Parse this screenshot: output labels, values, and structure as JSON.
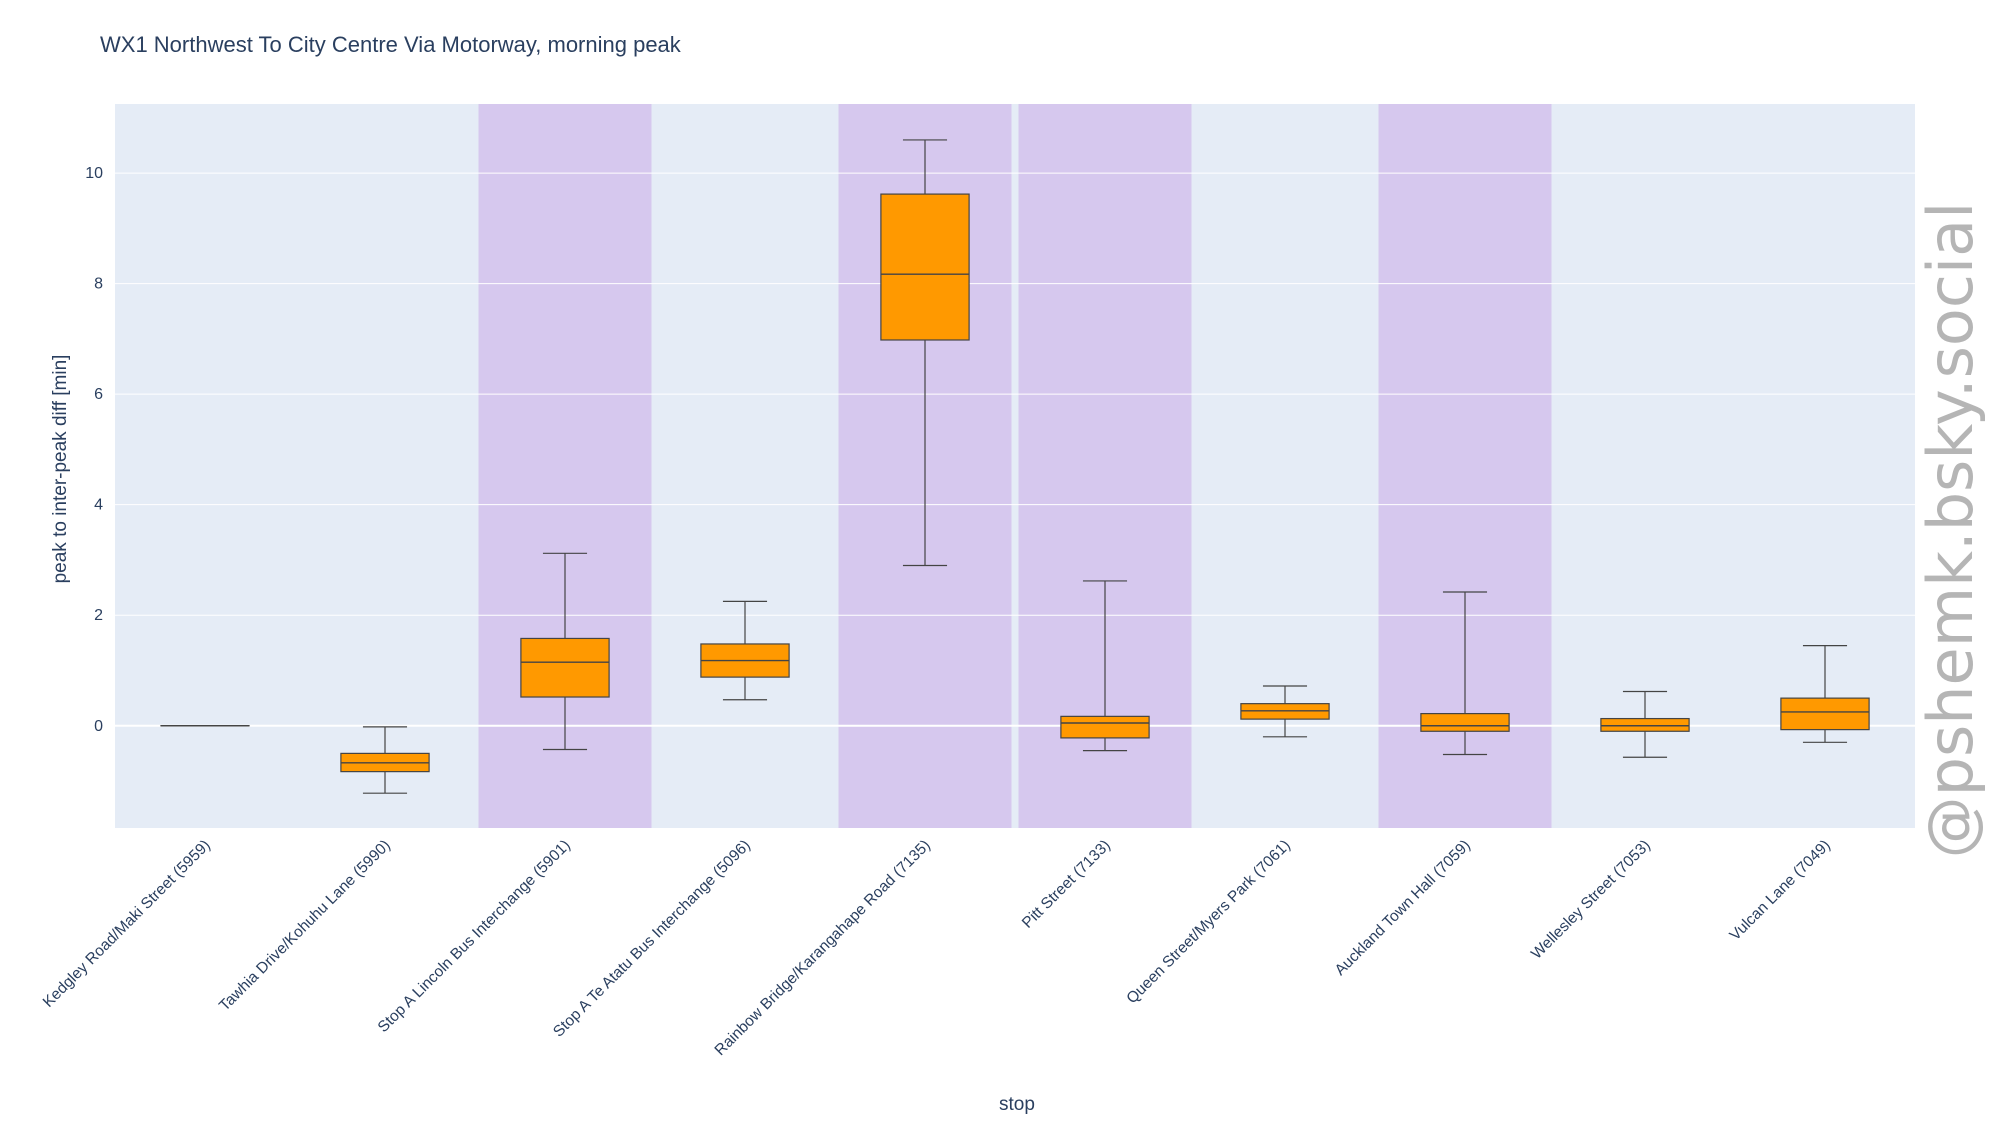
{
  "chart_data": {
    "type": "box",
    "title": "WX1 Northwest To City Centre Via Motorway, morning peak",
    "xlabel": "stop",
    "ylabel": "peak to inter-peak diff [min]",
    "ylim": [
      -1.85,
      11.25
    ],
    "yticks": [
      0,
      2,
      4,
      6,
      8,
      10
    ],
    "grid": true,
    "background_color": "#e5ecf6",
    "highlight_color": "#d6c8ee",
    "box_fill_color": "#ff9900",
    "box_line_color": "#444444",
    "categories": [
      "Kedgley Road/Maki Street (5959)",
      "Tawhia Drive/Kohuhu Lane (5990)",
      "Stop A Lincoln Bus Interchange (5901)",
      "Stop A Te Atatu Bus Interchange (5096)",
      "Rainbow Bridge/Karangahape Road (7135)",
      "Pitt Street (7133)",
      "Queen Street/Myers Park (7061)",
      "Auckland Town Hall (7059)",
      "Wellesley Street (7053)",
      "Vulcan Lane (7049)"
    ],
    "highlighted": [
      false,
      false,
      true,
      false,
      true,
      true,
      false,
      true,
      false,
      false
    ],
    "boxes": [
      {
        "min": 0,
        "q1": 0,
        "median": 0,
        "q3": 0,
        "max": 0
      },
      {
        "min": -1.22,
        "q1": -0.83,
        "median": -0.67,
        "q3": -0.5,
        "max": -0.02
      },
      {
        "min": -0.43,
        "q1": 0.52,
        "median": 1.15,
        "q3": 1.58,
        "max": 3.12
      },
      {
        "min": 0.47,
        "q1": 0.88,
        "median": 1.18,
        "q3": 1.48,
        "max": 2.25
      },
      {
        "min": 2.9,
        "q1": 6.98,
        "median": 8.17,
        "q3": 9.62,
        "max": 10.6
      },
      {
        "min": -0.45,
        "q1": -0.22,
        "median": 0.05,
        "q3": 0.17,
        "max": 2.62
      },
      {
        "min": -0.2,
        "q1": 0.12,
        "median": 0.27,
        "q3": 0.4,
        "max": 0.72
      },
      {
        "min": -0.52,
        "q1": -0.1,
        "median": 0.0,
        "q3": 0.22,
        "max": 2.42
      },
      {
        "min": -0.57,
        "q1": -0.1,
        "median": 0.0,
        "q3": 0.13,
        "max": 0.62
      },
      {
        "min": -0.3,
        "q1": -0.07,
        "median": 0.25,
        "q3": 0.5,
        "max": 1.45
      }
    ]
  },
  "watermark": "@pshemk.bsky.social"
}
